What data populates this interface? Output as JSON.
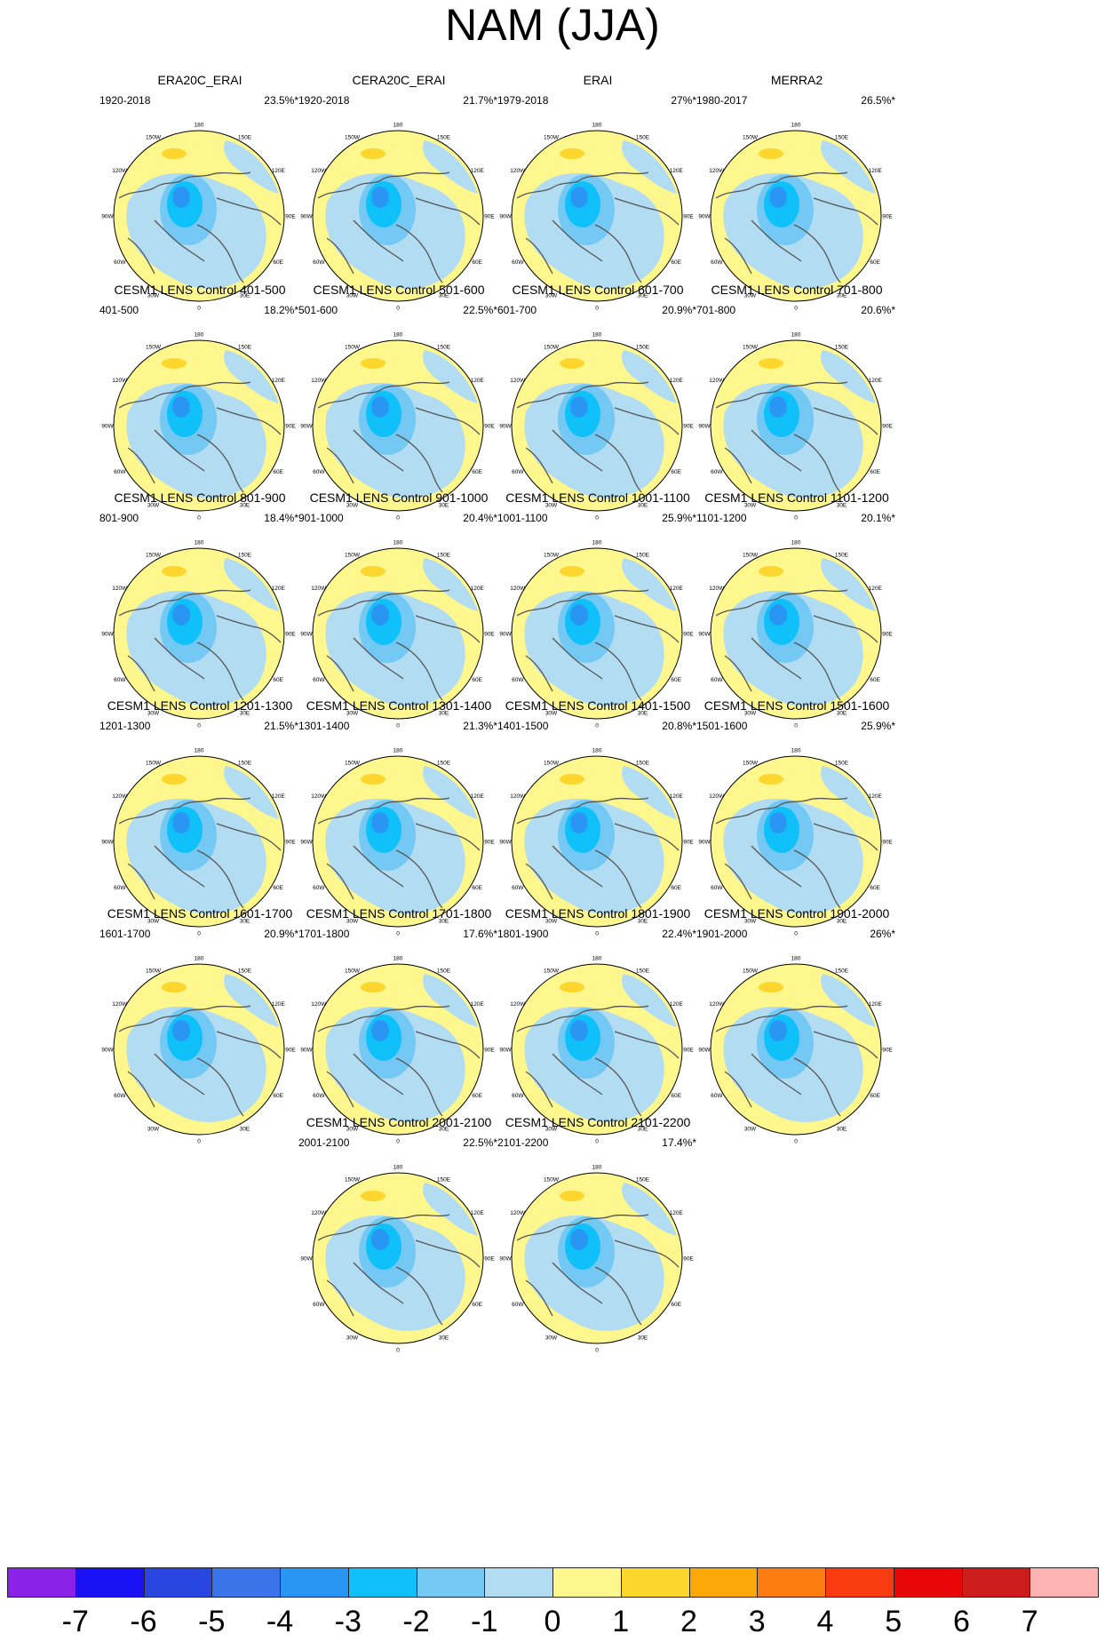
{
  "title": "NAM (JJA)",
  "panels": [
    {
      "title": "ERA20C_ERAI",
      "period": "1920-2018",
      "pct": "23.5%*"
    },
    {
      "title": "CERA20C_ERAI",
      "period": "1920-2018",
      "pct": "21.7%*"
    },
    {
      "title": "ERAI",
      "period": "1979-2018",
      "pct": "27%*"
    },
    {
      "title": "MERRA2",
      "period": "1980-2017",
      "pct": "26.5%*"
    },
    {
      "title": "CESM1 LENS Control 401-500",
      "period": "401-500",
      "pct": "18.2%*"
    },
    {
      "title": "CESM1 LENS Control 501-600",
      "period": "501-600",
      "pct": "22.5%*"
    },
    {
      "title": "CESM1 LENS Control 601-700",
      "period": "601-700",
      "pct": "20.9%*"
    },
    {
      "title": "CESM1 LENS Control 701-800",
      "period": "701-800",
      "pct": "20.6%*"
    },
    {
      "title": "CESM1 LENS Control 801-900",
      "period": "801-900",
      "pct": "18.4%*"
    },
    {
      "title": "CESM1 LENS Control 901-1000",
      "period": "901-1000",
      "pct": "20.4%*"
    },
    {
      "title": "CESM1 LENS Control 1001-1100",
      "period": "1001-1100",
      "pct": "25.9%*"
    },
    {
      "title": "CESM1 LENS Control 1101-1200",
      "period": "1101-1200",
      "pct": "20.1%*"
    },
    {
      "title": "CESM1 LENS Control 1201-1300",
      "period": "1201-1300",
      "pct": "21.5%*"
    },
    {
      "title": "CESM1 LENS Control 1301-1400",
      "period": "1301-1400",
      "pct": "21.3%*"
    },
    {
      "title": "CESM1 LENS Control 1401-1500",
      "period": "1401-1500",
      "pct": "20.8%*"
    },
    {
      "title": "CESM1 LENS Control 1501-1600",
      "period": "1501-1600",
      "pct": "25.9%*"
    },
    {
      "title": "CESM1 LENS Control 1601-1700",
      "period": "1601-1700",
      "pct": "20.9%*"
    },
    {
      "title": "CESM1 LENS Control 1701-1800",
      "period": "1701-1800",
      "pct": "17.6%*"
    },
    {
      "title": "CESM1 LENS Control 1801-1900",
      "period": "1801-1900",
      "pct": "22.4%*"
    },
    {
      "title": "CESM1 LENS Control 1901-2000",
      "period": "1901-2000",
      "pct": "26%*"
    },
    {
      "title": "CESM1 LENS Control 2001-2100",
      "period": "2001-2100",
      "pct": "22.5%*"
    },
    {
      "title": "CESM1 LENS Control 2101-2200",
      "period": "2101-2200",
      "pct": "17.4%*"
    }
  ],
  "longitude_labels": [
    "180",
    "150E",
    "120E",
    "90E",
    "60E",
    "30E",
    "0",
    "30W",
    "60W",
    "90W",
    "120W",
    "150W"
  ],
  "colorbar": {
    "colors": [
      "#8a22e8",
      "#1a12f5",
      "#2a46e0",
      "#3a74ea",
      "#2a96f4",
      "#10c0f8",
      "#74c8f4",
      "#b2dcf2",
      "#fdf78e",
      "#fcd62c",
      "#fca908",
      "#fc7c12",
      "#f93b12",
      "#e80606",
      "#cd1c1c",
      "#ffb2b2"
    ],
    "labels": [
      "-7",
      "-6",
      "-5",
      "-4",
      "-3",
      "-2",
      "-1",
      "0",
      "1",
      "2",
      "3",
      "4",
      "5",
      "6",
      "7"
    ]
  }
}
